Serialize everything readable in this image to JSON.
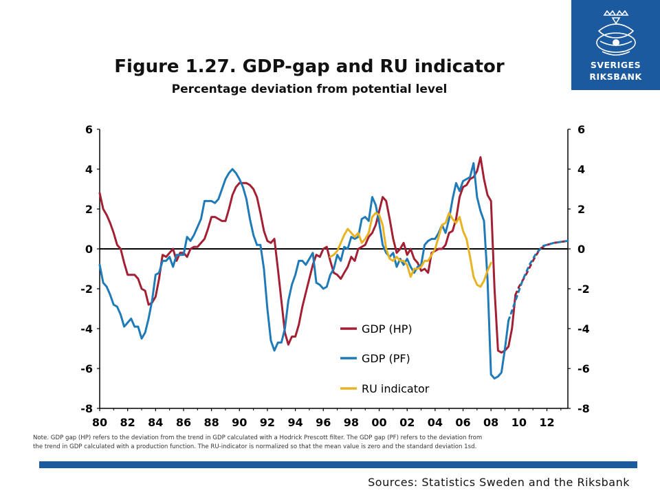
{
  "header": {
    "title": "Figure 1.27. GDP-gap and RU indicator",
    "subtitle": "Percentage deviation from potential level",
    "logo_line1": "SVERIGES",
    "logo_line2": "RIKSBANK"
  },
  "footer": {
    "note_line1": "Note. GDP gap (HP) refers to the deviation from the trend in GDP calculated with a Hodrick Prescott filter. The GDP gap (PF) refers to the deviation from",
    "note_line2": "the trend in GDP calculated with a production  function.  The RU-indicator is normalized so that the mean value is zero and the standard deviation 1sd.",
    "sources": "Sources: Statistics Sweden and the Riksbank"
  },
  "colors": {
    "gdp_hp": "#a31f34",
    "gdp_pf": "#1f7ab8",
    "ru": "#e8b323",
    "brand": "#1c5aa0"
  },
  "chart_data": {
    "type": "line",
    "title": "Figure 1.27. GDP-gap and RU indicator",
    "subtitle": "Percentage deviation from potential level",
    "xlabel": "",
    "ylabel": "",
    "xlim": [
      1980,
      1993.5
    ],
    "x_ticks": [
      1980,
      1982,
      1984,
      1986,
      1988,
      1990,
      1992,
      1994,
      1996,
      1998,
      2000,
      2002,
      2004,
      2006,
      2008,
      2010,
      2012
    ],
    "x_tick_labels": [
      "80",
      "82",
      "84",
      "86",
      "88",
      "90",
      "92",
      "94",
      "96",
      "98",
      "00",
      "02",
      "04",
      "06",
      "08",
      "10",
      "12"
    ],
    "ylim": [
      -8,
      6
    ],
    "y_ticks": [
      -8,
      -6,
      -4,
      -2,
      0,
      2,
      4,
      6
    ],
    "y_tick_labels": [
      "-8",
      "-6",
      "-4",
      "-2",
      "0",
      "2",
      "4",
      "6"
    ],
    "secondary_y_ticks": [
      "-8",
      "-6",
      "-4",
      "-2",
      "0",
      "2",
      "4",
      "6"
    ],
    "zero_line": true,
    "grid": false,
    "legend_position": "center",
    "series": [
      {
        "name": "GDP (HP)",
        "color": "#a31f34",
        "points": [
          [
            1980.0,
            2.8
          ],
          [
            1980.25,
            2.0
          ],
          [
            1980.5,
            1.7
          ],
          [
            1980.75,
            1.3
          ],
          [
            1981.0,
            0.8
          ],
          [
            1981.25,
            0.2
          ],
          [
            1981.5,
            0.0
          ],
          [
            1981.75,
            -0.7
          ],
          [
            1982.0,
            -1.3
          ],
          [
            1982.25,
            -1.3
          ],
          [
            1982.5,
            -1.3
          ],
          [
            1982.75,
            -1.5
          ],
          [
            1983.0,
            -2.0
          ],
          [
            1983.25,
            -2.1
          ],
          [
            1983.5,
            -2.8
          ],
          [
            1983.75,
            -2.7
          ],
          [
            1984.0,
            -2.4
          ],
          [
            1984.25,
            -1.5
          ],
          [
            1984.5,
            -0.3
          ],
          [
            1984.75,
            -0.4
          ],
          [
            1985.0,
            -0.2
          ],
          [
            1985.25,
            0.0
          ],
          [
            1985.5,
            -0.6
          ],
          [
            1985.75,
            -0.2
          ],
          [
            1986.0,
            -0.2
          ],
          [
            1986.25,
            -0.4
          ],
          [
            1986.5,
            0.0
          ],
          [
            1986.75,
            0.1
          ],
          [
            1987.0,
            0.1
          ],
          [
            1987.25,
            0.3
          ],
          [
            1987.5,
            0.5
          ],
          [
            1987.75,
            1.0
          ],
          [
            1988.0,
            1.6
          ],
          [
            1988.25,
            1.6
          ],
          [
            1988.5,
            1.5
          ],
          [
            1988.75,
            1.4
          ],
          [
            1989.0,
            1.4
          ],
          [
            1989.25,
            2.0
          ],
          [
            1989.5,
            2.7
          ],
          [
            1989.75,
            3.1
          ],
          [
            1990.0,
            3.3
          ],
          [
            1990.25,
            3.3
          ],
          [
            1990.5,
            3.3
          ],
          [
            1990.75,
            3.2
          ],
          [
            1991.0,
            3.0
          ],
          [
            1991.25,
            2.6
          ],
          [
            1991.5,
            1.8
          ],
          [
            1991.75,
            0.9
          ],
          [
            1992.0,
            0.4
          ],
          [
            1992.25,
            0.3
          ],
          [
            1992.5,
            0.5
          ],
          [
            1992.75,
            -1.0
          ],
          [
            1993.0,
            -2.6
          ],
          [
            1993.25,
            -4.2
          ],
          [
            1993.5,
            -4.8
          ]
        ]
      },
      {
        "name": "GDP (PF)",
        "color": "#1f7ab8",
        "points": [
          [
            1980.0,
            -0.8
          ],
          [
            1980.25,
            -1.7
          ],
          [
            1980.5,
            -1.9
          ],
          [
            1980.75,
            -2.3
          ],
          [
            1981.0,
            -2.8
          ],
          [
            1981.25,
            -2.9
          ],
          [
            1981.5,
            -3.3
          ],
          [
            1981.75,
            -3.9
          ],
          [
            1982.0,
            -3.7
          ],
          [
            1982.25,
            -3.5
          ],
          [
            1982.5,
            -3.9
          ],
          [
            1982.75,
            -3.9
          ],
          [
            1983.0,
            -4.5
          ],
          [
            1983.25,
            -4.2
          ],
          [
            1983.5,
            -3.5
          ],
          [
            1983.75,
            -2.6
          ],
          [
            1984.0,
            -1.3
          ],
          [
            1984.25,
            -1.2
          ],
          [
            1984.5,
            -0.6
          ],
          [
            1984.75,
            -0.6
          ],
          [
            1985.0,
            -0.4
          ],
          [
            1985.25,
            -0.9
          ],
          [
            1985.5,
            -0.3
          ],
          [
            1985.75,
            -0.3
          ],
          [
            1986.0,
            -0.3
          ],
          [
            1986.25,
            0.6
          ],
          [
            1986.5,
            0.4
          ],
          [
            1986.75,
            0.7
          ],
          [
            1987.0,
            1.1
          ],
          [
            1987.25,
            1.5
          ],
          [
            1987.5,
            2.4
          ],
          [
            1987.75,
            2.4
          ],
          [
            1988.0,
            2.4
          ],
          [
            1988.25,
            2.3
          ],
          [
            1988.5,
            2.5
          ],
          [
            1988.75,
            3.0
          ],
          [
            1989.0,
            3.5
          ],
          [
            1989.25,
            3.8
          ],
          [
            1989.5,
            4.0
          ],
          [
            1989.75,
            3.8
          ],
          [
            1990.0,
            3.5
          ],
          [
            1990.25,
            3.1
          ],
          [
            1990.5,
            2.5
          ],
          [
            1990.75,
            1.5
          ],
          [
            1991.0,
            0.7
          ],
          [
            1991.25,
            0.2
          ],
          [
            1991.5,
            0.2
          ],
          [
            1991.75,
            -1.0
          ],
          [
            1992.0,
            -3.0
          ],
          [
            1992.25,
            -4.6
          ],
          [
            1992.5,
            -5.1
          ],
          [
            1992.75,
            -4.7
          ],
          [
            1993.0,
            -4.7
          ],
          [
            1993.25,
            -4.0
          ],
          [
            1993.5,
            -2.6
          ]
        ]
      }
    ]
  },
  "legend": {
    "gdp_hp": "GDP (HP)",
    "gdp_pf": "GDP (PF)",
    "ru": "RU indicator"
  }
}
